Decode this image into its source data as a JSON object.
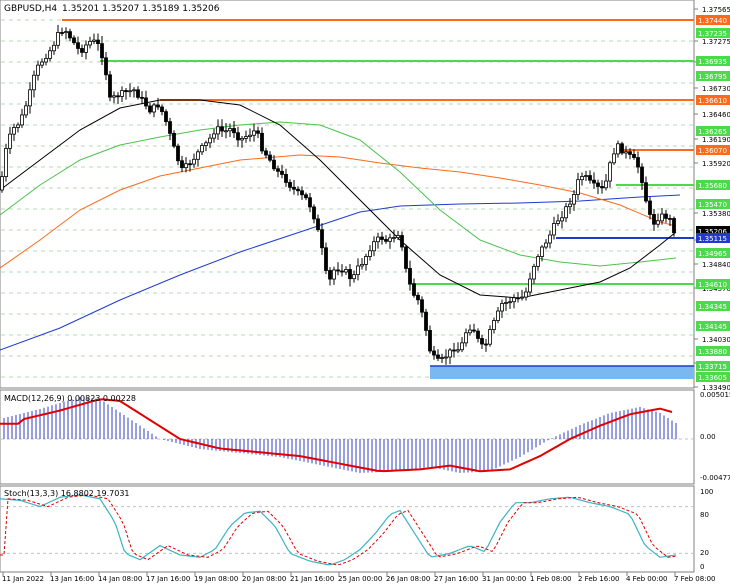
{
  "header": {
    "symbol_timeframe": "GBPUSD,H4",
    "ohlc": "1.35201 1.35207 1.35189 1.35206"
  },
  "price_axis": {
    "labels": [
      "1.37565",
      "1.37275",
      "1.37010",
      "1.36730",
      "1.36460",
      "1.36190",
      "1.35920",
      "1.35380",
      "1.35110",
      "1.34840",
      "1.34570",
      "1.34030",
      "1.33760",
      "1.33490"
    ],
    "current_price": "1.35206"
  },
  "price_tags": [
    {
      "label": "1.37440",
      "color": "#ff6a1a"
    },
    {
      "label": "1.37235",
      "color": "#4cd94c"
    },
    {
      "label": "1.36935",
      "color": "#4cd94c"
    },
    {
      "label": "1.36795",
      "color": "#4cd94c"
    },
    {
      "label": "1.36610",
      "color": "#ff6a1a"
    },
    {
      "label": "1.36265",
      "color": "#4cd94c"
    },
    {
      "label": "1.36070",
      "color": "#ff6a1a"
    },
    {
      "label": "1.35680",
      "color": "#4cd94c"
    },
    {
      "label": "1.35470",
      "color": "#4cd94c"
    },
    {
      "label": "1.35115",
      "color": "#1e3ad0"
    },
    {
      "label": "1.34965",
      "color": "#4cd94c"
    },
    {
      "label": "1.34610",
      "color": "#4cd94c"
    },
    {
      "label": "1.34345",
      "color": "#4cd94c"
    },
    {
      "label": "1.34145",
      "color": "#4cd94c"
    },
    {
      "label": "1.33880",
      "color": "#4cd94c"
    },
    {
      "label": "1.33715",
      "color": "#4cd94c"
    },
    {
      "label": "1.33605",
      "color": "#4cd94c"
    }
  ],
  "macd": {
    "label": "MACD(12,26,9) 0.00823 0.00228",
    "axis": [
      "0.005015",
      "0.00",
      "-0.004773"
    ]
  },
  "stoch": {
    "label": "Stoch(13,3,3) 16.8802 19.7031",
    "axis": [
      "100",
      "80",
      "20",
      "0"
    ]
  },
  "time_axis": [
    "11 Jan 2022",
    "13 Jan 16:00",
    "14 Jan 08:00",
    "17 Jan 16:00",
    "19 Jan 08:00",
    "20 Jan 08:00",
    "21 Jan 16:00",
    "25 Jan 00:00",
    "26 Jan 08:00",
    "27 Jan 16:00",
    "31 Jan 00:00",
    "1 Feb 08:00",
    "2 Feb 16:00",
    "4 Feb 00:00",
    "7 Feb 08:00"
  ],
  "colors": {
    "bull_candle": "#ffffff",
    "bear_candle": "#000000",
    "resistance": "#ff6a1a",
    "support": "#4cd94c",
    "blue_level": "#1e3ad0",
    "macd_histogram": "#2f3ec8",
    "macd_signal": "#e00000",
    "stoch_main": "#3bb3c3",
    "stoch_signal": "#e00000",
    "zone": "#79b9ef"
  }
}
